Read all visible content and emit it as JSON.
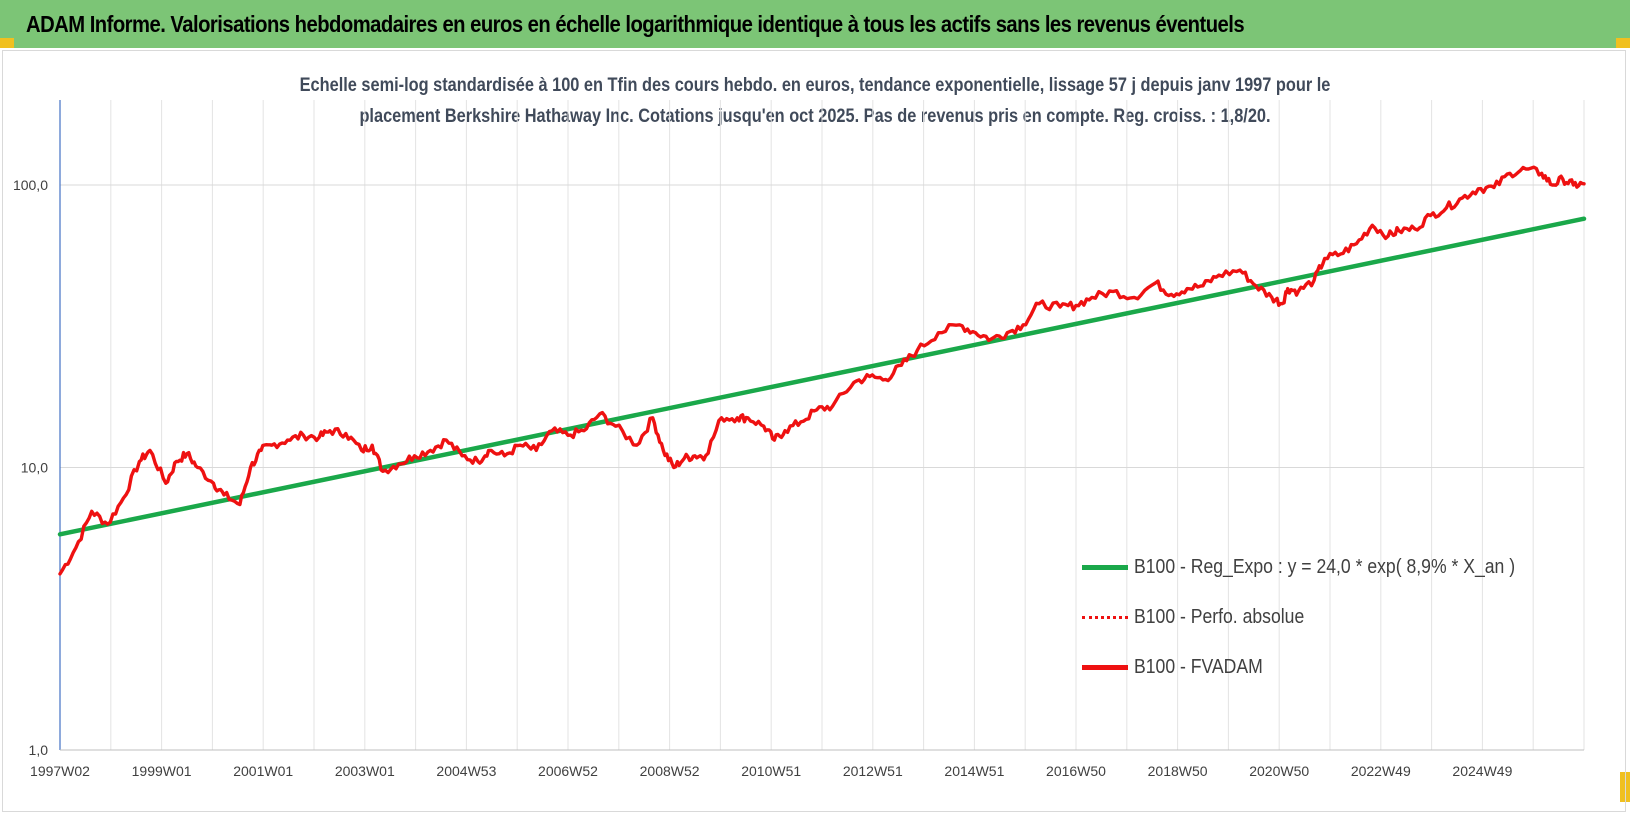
{
  "header": {
    "title": "ADAM Informe. Valorisations hebdomadaires en euros en échelle logarithmique identique à tous les actifs sans les revenus éventuels"
  },
  "colors": {
    "header_bg": "#7cc576",
    "reg": "#1aa84a",
    "fvadam": "#ee1111",
    "perfo": "#ee1111"
  },
  "chart_data": {
    "type": "line",
    "title_lines": [
      "Echelle semi-log standardisée à 100 en Tfin des cours hebdo. en euros, tendance exponentielle, lissage 57 j depuis janv 1997 pour le",
      "placement Berkshire Hathaway Inc. Cotations jusqu'en oct 2025. Pas de revenus pris en compte. Reg. croiss. : 1,8/20."
    ],
    "y_scale": "log",
    "ylim": [
      1,
      200
    ],
    "y_ticks": [
      1,
      10,
      100
    ],
    "y_tick_labels": [
      "1,0",
      "10,0",
      "100,0"
    ],
    "x_tick_labels": [
      "1997W02",
      "1999W01",
      "2001W01",
      "2003W01",
      "2004W53",
      "2006W52",
      "2008W52",
      "2010W51",
      "2012W51",
      "2014W51",
      "2016W50",
      "2018W50",
      "2020W50",
      "2022W49",
      "2024W49"
    ],
    "x_range_years": [
      1997.0,
      2025.8
    ],
    "grid": true,
    "legend_position": "bottom-right",
    "series": [
      {
        "name": "B100 - Reg_Expo : y = 24,0 * exp( 8,9% *  X_an )",
        "style": "solid",
        "color": "#1aa84a",
        "x": [
          1997.0,
          2025.8
        ],
        "values": [
          5.8,
          76.0
        ]
      },
      {
        "name": "B100 - Perfo. absolue",
        "style": "dotted",
        "color": "#ee1111",
        "x": [],
        "values": []
      },
      {
        "name": "B100 - FVADAM",
        "style": "solid",
        "color": "#ee1111",
        "x": [
          1997.0,
          1997.3,
          1997.6,
          1997.9,
          1998.2,
          1998.5,
          1998.7,
          1999.0,
          1999.2,
          1999.4,
          1999.6,
          1999.9,
          2000.1,
          2000.4,
          2000.6,
          2000.8,
          2001.0,
          2001.3,
          2001.6,
          2001.9,
          2002.1,
          2002.4,
          2002.7,
          2002.9,
          2003.1,
          2003.4,
          2003.7,
          2004.0,
          2004.3,
          2004.6,
          2004.9,
          2005.1,
          2005.4,
          2005.7,
          2006.0,
          2006.3,
          2006.6,
          2006.9,
          2007.2,
          2007.5,
          2007.9,
          2008.2,
          2008.4,
          2008.6,
          2008.8,
          2009.0,
          2009.2,
          2009.5,
          2009.8,
          2010.0,
          2010.3,
          2010.5,
          2010.7,
          2011.0,
          2011.3,
          2011.6,
          2012.0,
          2012.3,
          2012.6,
          2012.9,
          2013.2,
          2013.6,
          2014.0,
          2014.3,
          2014.6,
          2014.9,
          2015.2,
          2015.5,
          2015.9,
          2016.2,
          2016.5,
          2016.9,
          2017.3,
          2017.7,
          2018.0,
          2018.3,
          2018.6,
          2018.9,
          2019.3,
          2019.6,
          2019.9,
          2020.1,
          2020.2,
          2020.4,
          2020.7,
          2020.9,
          2021.2,
          2021.5,
          2021.8,
          2022.1,
          2022.3,
          2022.6,
          2022.9,
          2023.2,
          2023.5,
          2023.8,
          2024.1,
          2024.4,
          2024.7,
          2025.0,
          2025.2,
          2025.4,
          2025.6,
          2025.8
        ],
        "values": [
          4.2,
          5.2,
          7.0,
          6.3,
          7.8,
          10.5,
          11.5,
          8.8,
          10.5,
          11.2,
          10.0,
          8.8,
          8.0,
          7.4,
          10.0,
          11.5,
          12.0,
          12.5,
          13.0,
          12.8,
          13.5,
          13.2,
          11.5,
          12.0,
          9.7,
          10.3,
          11.0,
          11.5,
          12.5,
          11.0,
          10.5,
          11.5,
          11.0,
          12.0,
          11.5,
          13.5,
          13.0,
          13.5,
          15.5,
          14.0,
          12.0,
          15.0,
          11.5,
          10.0,
          10.8,
          11.0,
          11.0,
          15.0,
          15.0,
          15.0,
          14.0,
          12.5,
          13.5,
          14.5,
          16.0,
          16.5,
          20.0,
          21.0,
          20.5,
          23.0,
          26.0,
          30.0,
          32.0,
          30.0,
          28.5,
          30.0,
          32.0,
          38.0,
          37.0,
          37.5,
          40.0,
          42.0,
          40.0,
          45.0,
          41.0,
          43.0,
          44.0,
          48.0,
          50.0,
          44.0,
          40.0,
          38.0,
          43.0,
          42.0,
          46.0,
          55.0,
          57.0,
          62.0,
          72.0,
          66.0,
          69.0,
          70.0,
          78.0,
          83.0,
          90.0,
          97.0,
          98.0,
          110.0,
          114.0,
          110.0,
          100.0,
          105.0,
          100.0,
          101.0
        ]
      }
    ]
  }
}
